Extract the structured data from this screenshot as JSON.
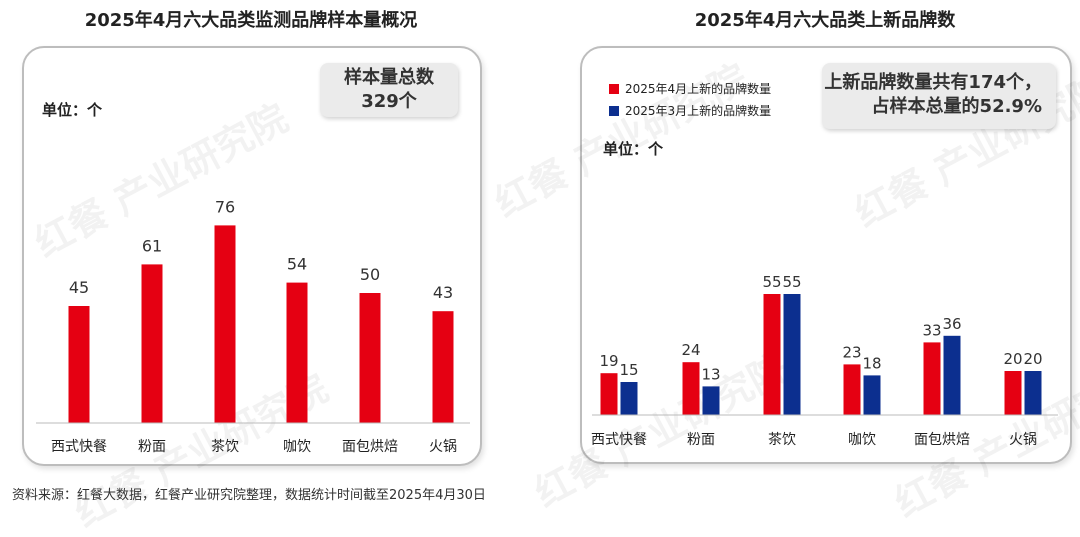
{
  "source_note": "资料来源：红餐大数据，红餐产业研究院整理，数据统计时间截至2025年4月30日",
  "watermark_text": "红餐 产业研究院",
  "colors": {
    "red": "#e50012",
    "blue": "#0c2f8f"
  },
  "chart_data": [
    {
      "type": "bar",
      "title": "2025年4月六大品类监测品牌样本量概况",
      "unit_label": "单位：个",
      "callout": {
        "line1": "样本量总数",
        "line2": "329个"
      },
      "categories": [
        "西式快餐",
        "粉面",
        "茶饮",
        "咖饮",
        "面包烘焙",
        "火锅"
      ],
      "series": [
        {
          "values": [
            45,
            61,
            76,
            54,
            50,
            43
          ]
        }
      ],
      "ylim": [
        0,
        90
      ],
      "legend": "none",
      "grid": false
    },
    {
      "type": "bar",
      "title": "2025年4月六大品类上新品牌数",
      "unit_label": "单位：个",
      "callout": {
        "line1": "上新品牌数量共有174个，",
        "line2": "占样本总量的52.9%"
      },
      "categories": [
        "西式快餐",
        "粉面",
        "茶饮",
        "咖饮",
        "面包烘焙",
        "火锅"
      ],
      "series": [
        {
          "name": "2025年4月上新的品牌数量",
          "values": [
            19,
            24,
            55,
            23,
            33,
            20
          ]
        },
        {
          "name": "2025年3月上新的品牌数量",
          "values": [
            15,
            13,
            55,
            18,
            36,
            20
          ]
        }
      ],
      "ylim": [
        0,
        90
      ],
      "legend": "top-left",
      "grid": false
    }
  ]
}
